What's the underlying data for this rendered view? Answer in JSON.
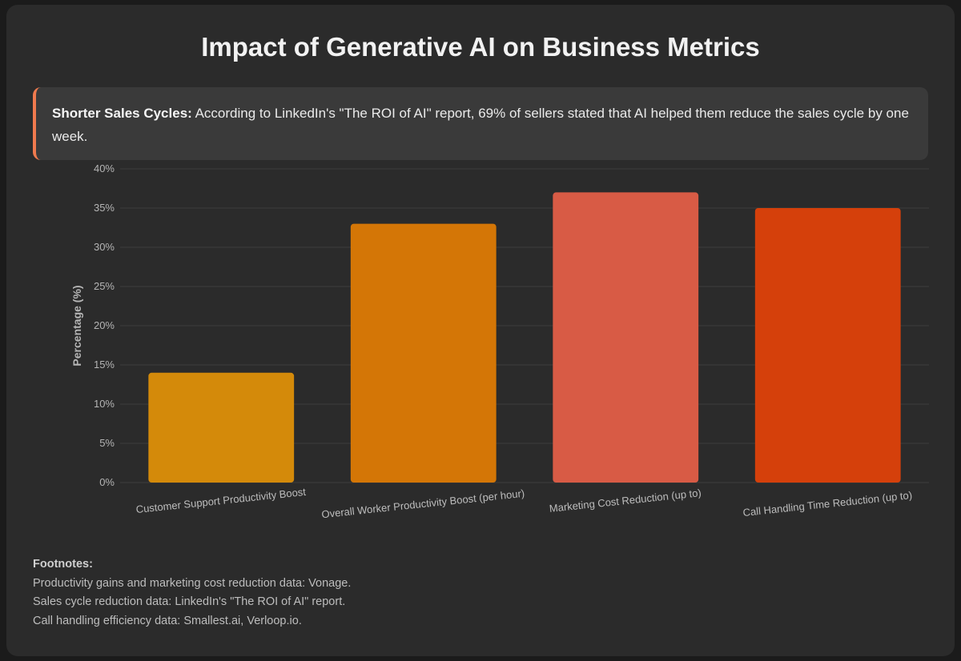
{
  "title": "Impact of Generative AI on Business Metrics",
  "callout": {
    "heading": "Shorter Sales Cycles:",
    "text": " According to LinkedIn's \"The ROI of AI\" report, 69% of sellers stated that AI helped them reduce the sales cycle by one week.",
    "accent": "#f07a4e"
  },
  "chart_data": {
    "type": "bar",
    "title": "Impact of Generative AI on Business Metrics",
    "xlabel": "",
    "ylabel": "Percentage (%)",
    "ylim": [
      0,
      40
    ],
    "yticks": [
      0,
      5,
      10,
      15,
      20,
      25,
      30,
      35,
      40
    ],
    "ytick_suffix": "%",
    "grid": true,
    "categories": [
      "Customer Support Productivity Boost",
      "Overall Worker Productivity Boost (per hour)",
      "Marketing Cost Reduction (up to)",
      "Call Handling Time Reduction (up to)"
    ],
    "values": [
      14,
      33,
      37,
      35
    ],
    "colors": [
      "#d48a0a",
      "#d47606",
      "#d85b45",
      "#d5400b"
    ]
  },
  "footnotes": {
    "heading": "Footnotes:",
    "lines": [
      "Productivity gains and marketing cost reduction data: Vonage.",
      "Sales cycle reduction data: LinkedIn's \"The ROI of AI\" report.",
      "Call handling efficiency data: Smallest.ai, Verloop.io."
    ]
  }
}
